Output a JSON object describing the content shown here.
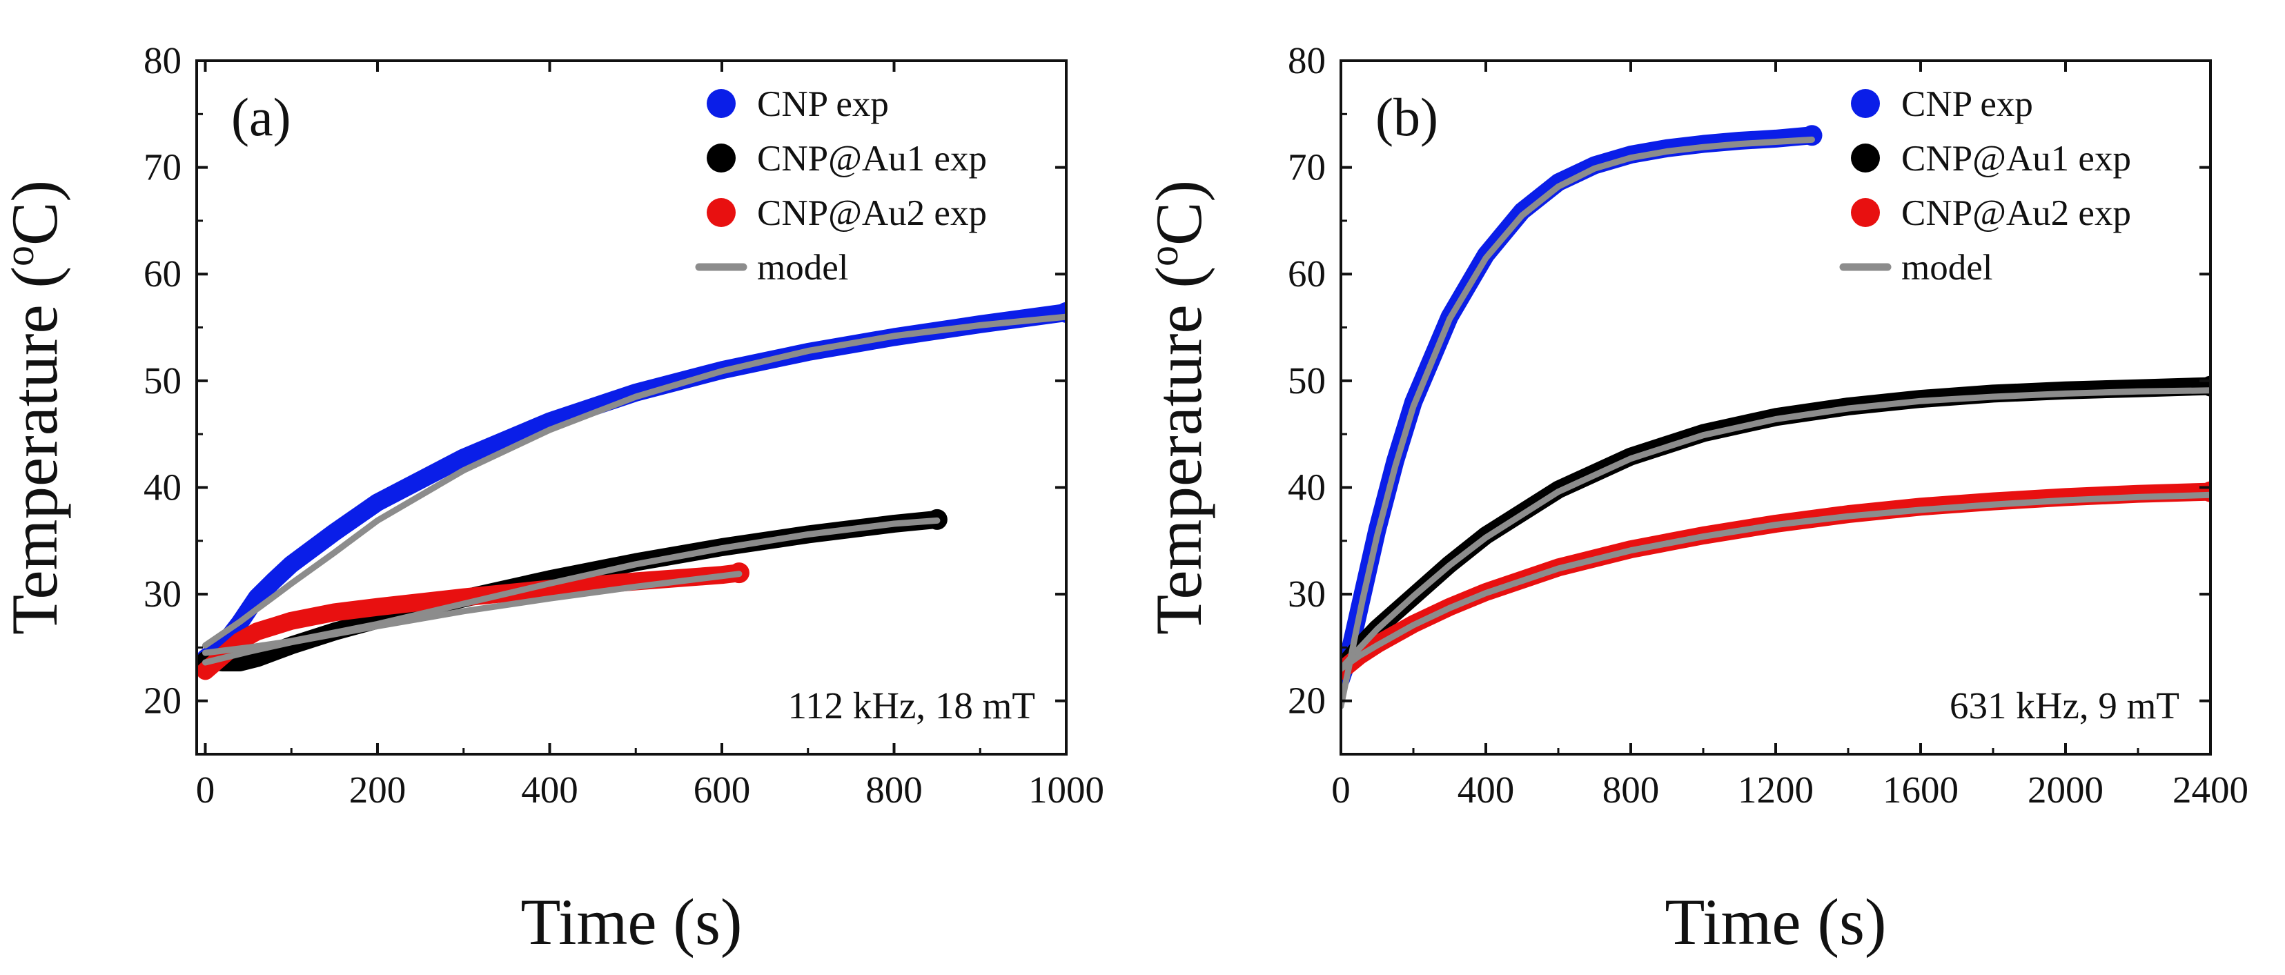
{
  "chart_data": [
    {
      "type": "line",
      "panel_label": "(a)",
      "annotation": "112 kHz, 18 mT",
      "xlabel": "Time (s)",
      "ylabel": "Temperature (°C)",
      "ylabel_parts": {
        "main": "Temperature (",
        "sup": "o",
        "unit": "C)"
      },
      "xlim": [
        -10,
        1000
      ],
      "ylim": [
        15,
        80
      ],
      "xticks": [
        0,
        200,
        400,
        600,
        800,
        1000
      ],
      "xtick_labels": [
        "0",
        "200",
        "400",
        "600",
        "800",
        "1000"
      ],
      "yticks": [
        20,
        30,
        40,
        50,
        60,
        70,
        80
      ],
      "ytick_labels": [
        "20",
        "30",
        "40",
        "50",
        "60",
        "70",
        "80"
      ],
      "legend": [
        {
          "label": "CNP exp",
          "kind": "marker",
          "color": "#0a1ee8"
        },
        {
          "label": "CNP@Au1 exp",
          "kind": "marker",
          "color": "#000000"
        },
        {
          "label": "CNP@Au2 exp",
          "kind": "marker",
          "color": "#e81010"
        },
        {
          "label": "model",
          "kind": "line",
          "color": "#8c8c8c"
        }
      ],
      "series": [
        {
          "name": "CNP exp",
          "color": "#0a1ee8",
          "x": [
            0,
            20,
            40,
            60,
            80,
            100,
            150,
            200,
            300,
            400,
            500,
            600,
            700,
            800,
            900,
            1000
          ],
          "values": [
            24.0,
            25.2,
            27.3,
            29.7,
            31.3,
            32.8,
            35.8,
            38.6,
            42.8,
            46.2,
            48.9,
            51.0,
            52.7,
            54.1,
            55.3,
            56.4
          ]
        },
        {
          "name": "CNP@Au1 exp",
          "color": "#000000",
          "x": [
            0,
            20,
            40,
            60,
            80,
            100,
            150,
            200,
            300,
            400,
            500,
            600,
            700,
            800,
            850
          ],
          "values": [
            23.8,
            23.6,
            23.6,
            24.0,
            24.6,
            25.2,
            26.5,
            27.6,
            29.6,
            31.4,
            33.0,
            34.4,
            35.6,
            36.6,
            37.0
          ]
        },
        {
          "name": "CNP@Au2 exp",
          "color": "#e81010",
          "x": [
            0,
            20,
            40,
            60,
            80,
            100,
            150,
            200,
            300,
            400,
            500,
            600,
            620
          ],
          "values": [
            22.8,
            24.2,
            25.6,
            26.5,
            27.0,
            27.5,
            28.3,
            28.8,
            29.7,
            30.5,
            31.2,
            31.8,
            32.0
          ]
        },
        {
          "name": "model (CNP)",
          "color": "#8c8c8c",
          "style": "model",
          "x": [
            0,
            20,
            40,
            60,
            80,
            100,
            150,
            200,
            300,
            400,
            500,
            600,
            700,
            800,
            900,
            1000
          ],
          "values": [
            25.2,
            26.3,
            27.4,
            28.6,
            29.8,
            31.0,
            33.9,
            36.9,
            41.6,
            45.4,
            48.5,
            50.9,
            52.8,
            54.2,
            55.2,
            56.0
          ]
        },
        {
          "name": "model (CNP@Au1)",
          "color": "#8c8c8c",
          "style": "model",
          "x": [
            0,
            50,
            100,
            200,
            300,
            400,
            500,
            600,
            700,
            800,
            850
          ],
          "values": [
            24.5,
            25.0,
            25.6,
            27.2,
            29.1,
            31.0,
            32.8,
            34.3,
            35.6,
            36.6,
            36.9
          ]
        },
        {
          "name": "model (CNP@Au2)",
          "color": "#8c8c8c",
          "style": "model",
          "x": [
            0,
            50,
            100,
            200,
            300,
            400,
            500,
            600,
            620
          ],
          "values": [
            23.6,
            24.6,
            25.5,
            27.0,
            28.4,
            29.6,
            30.7,
            31.7,
            31.9
          ]
        }
      ]
    },
    {
      "type": "line",
      "panel_label": "(b)",
      "annotation": "631 kHz, 9 mT",
      "xlabel": "Time (s)",
      "ylabel": "Temperature (°C)",
      "ylabel_parts": {
        "main": "Temperature (",
        "sup": "o",
        "unit": "C)"
      },
      "xlim": [
        0,
        2400
      ],
      "ylim": [
        15,
        80
      ],
      "xticks": [
        0,
        400,
        800,
        1200,
        1600,
        2000,
        2400
      ],
      "xtick_labels": [
        "0",
        "400",
        "800",
        "1200",
        "1600",
        "2000",
        "2400"
      ],
      "yticks": [
        20,
        30,
        40,
        50,
        60,
        70,
        80
      ],
      "ytick_labels": [
        "20",
        "30",
        "40",
        "50",
        "60",
        "70",
        "80"
      ],
      "legend": [
        {
          "label": "CNP exp",
          "kind": "marker",
          "color": "#0a1ee8"
        },
        {
          "label": "CNP@Au1 exp",
          "kind": "marker",
          "color": "#000000"
        },
        {
          "label": "CNP@Au2 exp",
          "kind": "marker",
          "color": "#e81010"
        },
        {
          "label": "model",
          "kind": "line",
          "color": "#8c8c8c"
        }
      ],
      "series": [
        {
          "name": "CNP exp",
          "color": "#0a1ee8",
          "x": [
            0,
            20,
            40,
            60,
            100,
            150,
            200,
            300,
            400,
            500,
            600,
            700,
            800,
            900,
            1000,
            1100,
            1200,
            1300
          ],
          "values": [
            22.0,
            24.0,
            27.0,
            30.0,
            36.0,
            42.5,
            48.0,
            56.0,
            61.8,
            65.9,
            68.6,
            70.2,
            71.2,
            71.8,
            72.2,
            72.5,
            72.7,
            73.0
          ]
        },
        {
          "name": "CNP@Au1 exp",
          "color": "#000000",
          "x": [
            0,
            50,
            100,
            200,
            300,
            400,
            600,
            800,
            1000,
            1200,
            1400,
            1600,
            1800,
            2000,
            2200,
            2400
          ],
          "values": [
            23.0,
            25.0,
            26.8,
            29.8,
            32.8,
            35.5,
            39.8,
            42.9,
            45.1,
            46.6,
            47.6,
            48.3,
            48.8,
            49.1,
            49.3,
            49.5
          ]
        },
        {
          "name": "CNP@Au2 exp",
          "color": "#e81010",
          "x": [
            0,
            50,
            100,
            200,
            300,
            400,
            600,
            800,
            1000,
            1200,
            1400,
            1600,
            1800,
            2000,
            2200,
            2400
          ],
          "values": [
            22.8,
            24.2,
            25.3,
            27.2,
            28.8,
            30.2,
            32.5,
            34.2,
            35.5,
            36.6,
            37.5,
            38.2,
            38.7,
            39.1,
            39.4,
            39.6
          ]
        },
        {
          "name": "model (CNP)",
          "color": "#8c8c8c",
          "style": "model",
          "x": [
            0,
            20,
            40,
            60,
            100,
            150,
            200,
            300,
            400,
            500,
            600,
            700,
            800,
            900,
            1000,
            1100,
            1200,
            1300
          ],
          "values": [
            19.5,
            22.8,
            26.2,
            29.5,
            35.5,
            42.0,
            47.6,
            55.8,
            61.5,
            65.5,
            68.2,
            69.9,
            70.9,
            71.5,
            71.9,
            72.2,
            72.4,
            72.6
          ]
        },
        {
          "name": "model (CNP@Au1)",
          "color": "#8c8c8c",
          "style": "model",
          "x": [
            0,
            50,
            100,
            200,
            300,
            400,
            600,
            800,
            1000,
            1200,
            1400,
            1600,
            1800,
            2000,
            2200,
            2400
          ],
          "values": [
            23.0,
            24.9,
            26.7,
            29.8,
            32.7,
            35.3,
            39.6,
            42.7,
            44.9,
            46.4,
            47.4,
            48.1,
            48.5,
            48.8,
            49.0,
            49.1
          ]
        },
        {
          "name": "model (CNP@Au2)",
          "color": "#8c8c8c",
          "style": "model",
          "x": [
            0,
            50,
            100,
            200,
            300,
            400,
            600,
            800,
            1000,
            1200,
            1400,
            1600,
            1800,
            2000,
            2200,
            2400
          ],
          "values": [
            23.0,
            24.2,
            25.2,
            27.1,
            28.7,
            30.1,
            32.4,
            34.1,
            35.4,
            36.5,
            37.3,
            37.9,
            38.4,
            38.8,
            39.1,
            39.3
          ]
        }
      ]
    }
  ]
}
